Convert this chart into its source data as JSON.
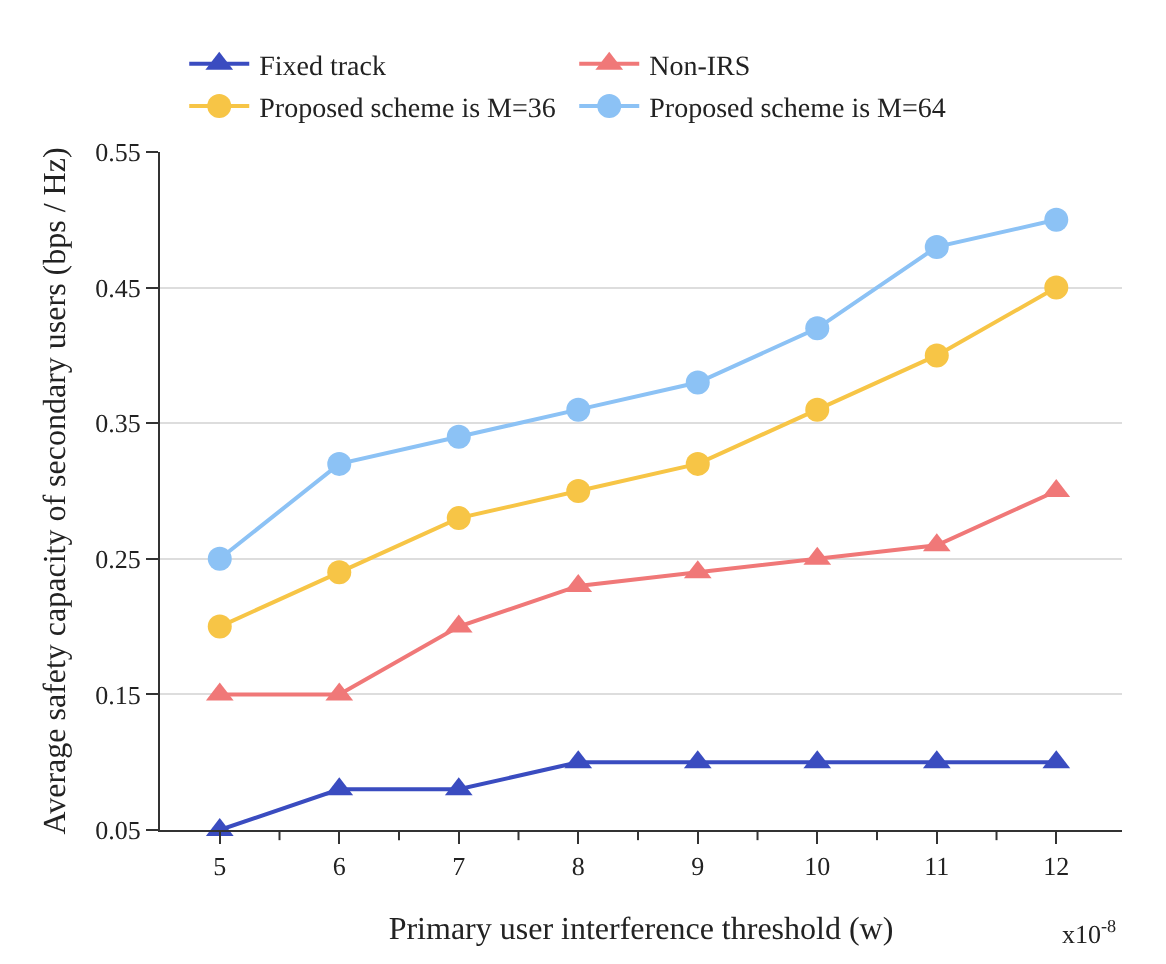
{
  "chart_data": {
    "type": "line",
    "xlabel": "Primary user interference threshold (w)",
    "ylabel": "Average safety capacity of secondary users (bps / Hz)",
    "categories": [
      "5",
      "6",
      "7",
      "8",
      "9",
      "10",
      "11",
      "12"
    ],
    "series": [
      {
        "name": "Fixed track",
        "color": "#3a4cc0",
        "marker": "triangle",
        "values": [
          0.05,
          0.08,
          0.08,
          0.1,
          0.1,
          0.1,
          0.1,
          0.1
        ]
      },
      {
        "name": "Non-IRS",
        "color": "#f07878",
        "marker": "triangle",
        "values": [
          0.15,
          0.15,
          0.2,
          0.23,
          0.24,
          0.25,
          0.26,
          0.3
        ]
      },
      {
        "name": "Proposed scheme is M=36",
        "color": "#f7c546",
        "marker": "circle",
        "values": [
          0.2,
          0.24,
          0.28,
          0.3,
          0.32,
          0.36,
          0.4,
          0.45
        ]
      },
      {
        "name": "Proposed scheme is M=64",
        "color": "#8cc2f5",
        "marker": "circle",
        "values": [
          0.25,
          0.32,
          0.34,
          0.36,
          0.38,
          0.42,
          0.48,
          0.5
        ]
      }
    ],
    "ylim": [
      0.05,
      0.55
    ],
    "yticks": [
      0.05,
      0.15,
      0.25,
      0.35,
      0.45,
      0.55
    ],
    "annotations": [
      "x10$^{-8}$"
    ],
    "grid": "y",
    "legend": "top",
    "line_style": "solid"
  }
}
